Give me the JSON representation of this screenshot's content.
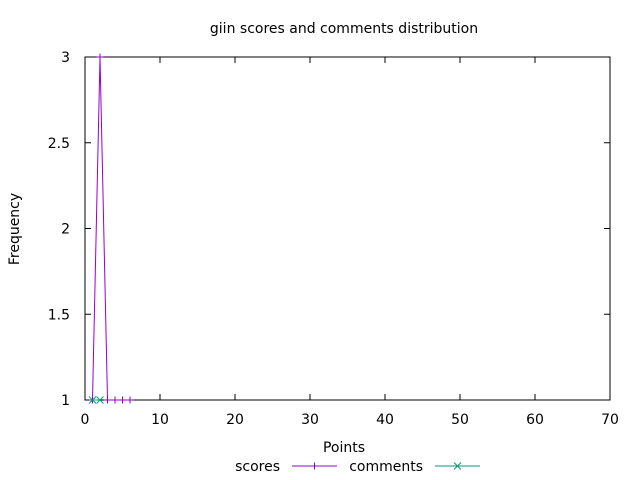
{
  "chart_data": {
    "type": "line",
    "title": "giin scores and comments distribution",
    "xlabel": "Points",
    "ylabel": "Frequency",
    "xlim": [
      0,
      70
    ],
    "ylim": [
      1,
      3
    ],
    "x_ticks": [
      "0",
      "10",
      "20",
      "30",
      "40",
      "50",
      "60",
      "70"
    ],
    "y_ticks": [
      "1",
      "1.5",
      "2",
      "2.5",
      "3"
    ],
    "grid": false,
    "legend_position": "bottom-center",
    "series": [
      {
        "name": "scores",
        "color": "#9400d3",
        "marker": "plus",
        "x": [
          1,
          2,
          3,
          4,
          5,
          6
        ],
        "y": [
          1,
          3,
          1,
          1,
          1,
          1
        ]
      },
      {
        "name": "comments",
        "color": "#009e73",
        "marker": "cross",
        "x": [
          1,
          2
        ],
        "y": [
          1,
          1
        ]
      }
    ]
  }
}
